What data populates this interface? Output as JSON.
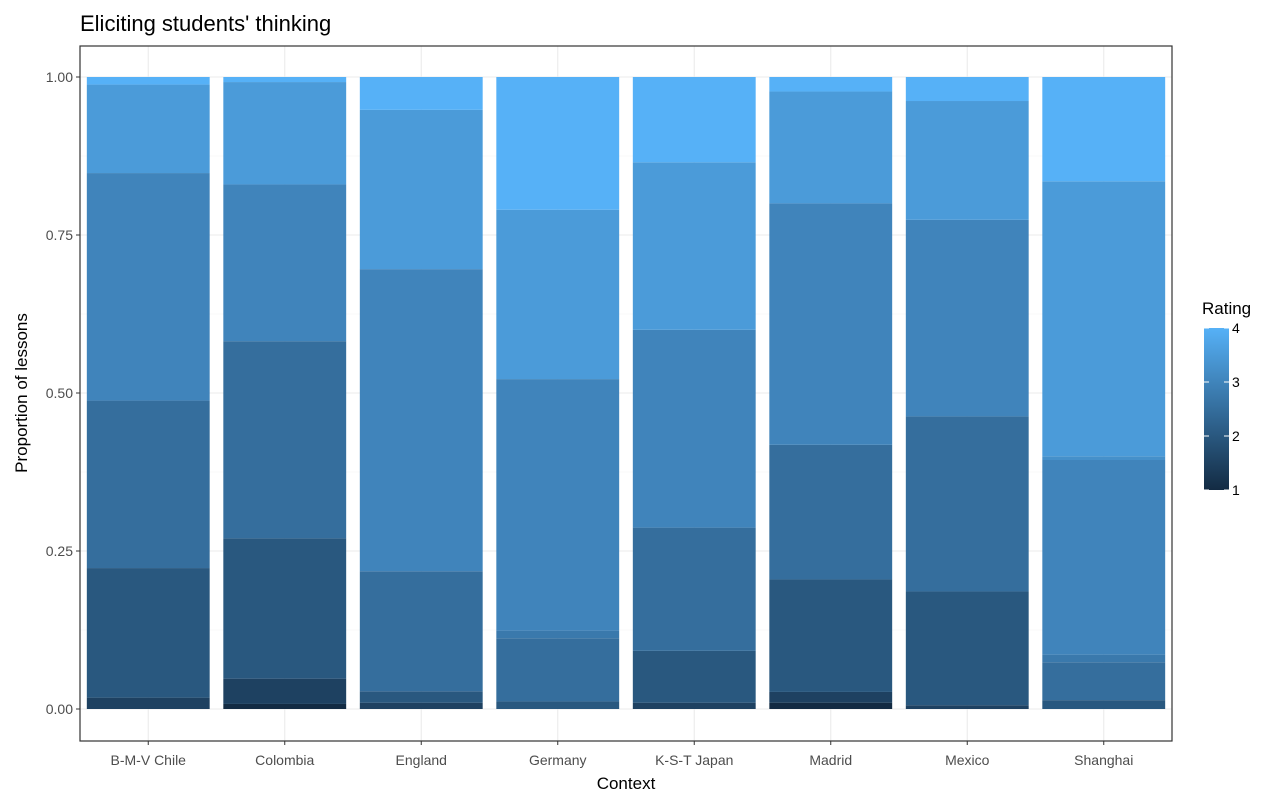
{
  "chart_data": {
    "type": "bar",
    "stacked": true,
    "title": "Eliciting students' thinking",
    "xlabel": "Context",
    "ylabel": "Proportion of lessons",
    "ylim": [
      0,
      1
    ],
    "yticks": [
      0,
      0.25,
      0.5,
      0.75,
      1
    ],
    "ytick_labels": [
      "0.00",
      "0.25",
      "0.50",
      "0.75",
      "1.00"
    ],
    "grid": true,
    "categories": [
      "B-M-V Chile",
      "Colombia",
      "England",
      "Germany",
      "K-S-T Japan",
      "Madrid",
      "Mexico",
      "Shanghai"
    ],
    "segments": [
      [
        {
          "value": 1.5,
          "height": 0.018
        },
        {
          "value": 2.0,
          "height": 0.205
        },
        {
          "value": 2.5,
          "height": 0.265
        },
        {
          "value": 3.0,
          "height": 0.36
        },
        {
          "value": 3.5,
          "height": 0.14
        },
        {
          "value": 4.0,
          "height": 0.012
        }
      ],
      [
        {
          "value": 1.0,
          "height": 0.008
        },
        {
          "value": 1.5,
          "height": 0.04
        },
        {
          "value": 2.0,
          "height": 0.222
        },
        {
          "value": 2.5,
          "height": 0.312
        },
        {
          "value": 3.0,
          "height": 0.248
        },
        {
          "value": 3.5,
          "height": 0.162
        },
        {
          "value": 4.0,
          "height": 0.008
        }
      ],
      [
        {
          "value": 1.5,
          "height": 0.01
        },
        {
          "value": 2.0,
          "height": 0.018
        },
        {
          "value": 2.5,
          "height": 0.19
        },
        {
          "value": 3.0,
          "height": 0.478
        },
        {
          "value": 3.5,
          "height": 0.252
        },
        {
          "value": 4.0,
          "height": 0.052
        }
      ],
      [
        {
          "value": 2.0,
          "height": 0.012
        },
        {
          "value": 2.5,
          "height": 0.1
        },
        {
          "value": 2.75,
          "height": 0.012
        },
        {
          "value": 3.0,
          "height": 0.398
        },
        {
          "value": 3.5,
          "height": 0.268
        },
        {
          "value": 4.0,
          "height": 0.21
        }
      ],
      [
        {
          "value": 1.5,
          "height": 0.01
        },
        {
          "value": 2.0,
          "height": 0.082
        },
        {
          "value": 2.5,
          "height": 0.195
        },
        {
          "value": 3.0,
          "height": 0.313
        },
        {
          "value": 3.5,
          "height": 0.265
        },
        {
          "value": 4.0,
          "height": 0.135
        }
      ],
      [
        {
          "value": 1.0,
          "height": 0.01
        },
        {
          "value": 1.5,
          "height": 0.017
        },
        {
          "value": 2.0,
          "height": 0.178
        },
        {
          "value": 2.5,
          "height": 0.213
        },
        {
          "value": 3.0,
          "height": 0.382
        },
        {
          "value": 3.5,
          "height": 0.177
        },
        {
          "value": 4.0,
          "height": 0.023
        }
      ],
      [
        {
          "value": 1.5,
          "height": 0.006
        },
        {
          "value": 2.0,
          "height": 0.18
        },
        {
          "value": 2.5,
          "height": 0.277
        },
        {
          "value": 3.0,
          "height": 0.311
        },
        {
          "value": 3.5,
          "height": 0.188
        },
        {
          "value": 4.0,
          "height": 0.038
        }
      ],
      [
        {
          "value": 2.0,
          "height": 0.014
        },
        {
          "value": 2.5,
          "height": 0.06
        },
        {
          "value": 2.75,
          "height": 0.012
        },
        {
          "value": 3.0,
          "height": 0.308
        },
        {
          "value": 3.25,
          "height": 0.006
        },
        {
          "value": 3.5,
          "height": 0.435
        },
        {
          "value": 4.0,
          "height": 0.165
        }
      ]
    ],
    "legend": {
      "title": "Rating",
      "position": "right",
      "breaks": [
        "1",
        "2",
        "3",
        "4"
      ],
      "range": [
        1,
        4
      ],
      "low_color": "#132B43",
      "high_color": "#56B1F7"
    }
  }
}
